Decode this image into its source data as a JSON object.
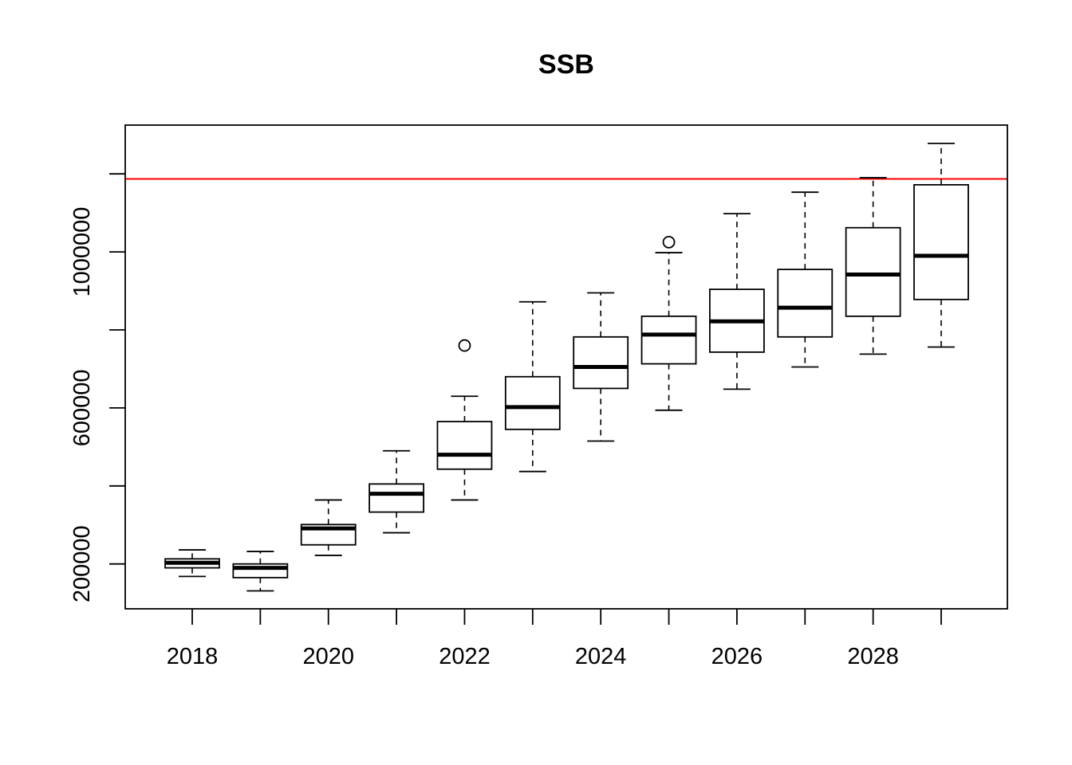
{
  "chart_data": {
    "type": "boxplot",
    "title": "SSB",
    "xlabel": "",
    "ylabel": "",
    "categories": [
      "2018",
      "2019",
      "2020",
      "2021",
      "2022",
      "2023",
      "2024",
      "2025",
      "2026",
      "2027",
      "2028",
      "2029"
    ],
    "x_tick_labels": [
      "2018",
      "2020",
      "2022",
      "2024",
      "2026",
      "2028"
    ],
    "y_tick_values": [
      200000,
      400000,
      600000,
      800000,
      1000000,
      1200000
    ],
    "y_tick_labels": [
      "200000",
      "",
      "600000",
      "",
      "1000000",
      ""
    ],
    "ylim": [
      85000,
      1325000
    ],
    "boxes": [
      {
        "year": "2018",
        "whisker_low": 168000,
        "q1": 190000,
        "median": 203000,
        "q3": 213000,
        "whisker_high": 236000,
        "outliers": []
      },
      {
        "year": "2019",
        "whisker_low": 131000,
        "q1": 165000,
        "median": 190000,
        "q3": 200000,
        "whisker_high": 232000,
        "outliers": []
      },
      {
        "year": "2020",
        "whisker_low": 222000,
        "q1": 249000,
        "median": 291000,
        "q3": 301000,
        "whisker_high": 364000,
        "outliers": []
      },
      {
        "year": "2021",
        "whisker_low": 280000,
        "q1": 333000,
        "median": 380000,
        "q3": 405000,
        "whisker_high": 490000,
        "outliers": []
      },
      {
        "year": "2022",
        "whisker_low": 364000,
        "q1": 443000,
        "median": 480000,
        "q3": 565000,
        "whisker_high": 630000,
        "outliers": [
          760000
        ]
      },
      {
        "year": "2023",
        "whisker_low": 437000,
        "q1": 545000,
        "median": 602000,
        "q3": 680000,
        "whisker_high": 872000,
        "outliers": []
      },
      {
        "year": "2024",
        "whisker_low": 515000,
        "q1": 650000,
        "median": 705000,
        "q3": 782000,
        "whisker_high": 895000,
        "outliers": []
      },
      {
        "year": "2025",
        "whisker_low": 594000,
        "q1": 713000,
        "median": 788000,
        "q3": 835000,
        "whisker_high": 998000,
        "outliers": [
          1025000
        ]
      },
      {
        "year": "2026",
        "whisker_low": 648000,
        "q1": 743000,
        "median": 822000,
        "q3": 904000,
        "whisker_high": 1098000,
        "outliers": []
      },
      {
        "year": "2027",
        "whisker_low": 705000,
        "q1": 782000,
        "median": 857000,
        "q3": 955000,
        "whisker_high": 1153000,
        "outliers": []
      },
      {
        "year": "2028",
        "whisker_low": 738000,
        "q1": 835000,
        "median": 942000,
        "q3": 1062000,
        "whisker_high": 1190000,
        "outliers": []
      },
      {
        "year": "2029",
        "whisker_low": 756000,
        "q1": 878000,
        "median": 990000,
        "q3": 1172000,
        "whisker_high": 1278000,
        "outliers": []
      }
    ],
    "reference_line": {
      "y": 1187000,
      "color": "#ff0000"
    },
    "grid": false,
    "legend": "none",
    "colors": {
      "box": "#000000",
      "reference": "#ff0000"
    }
  }
}
